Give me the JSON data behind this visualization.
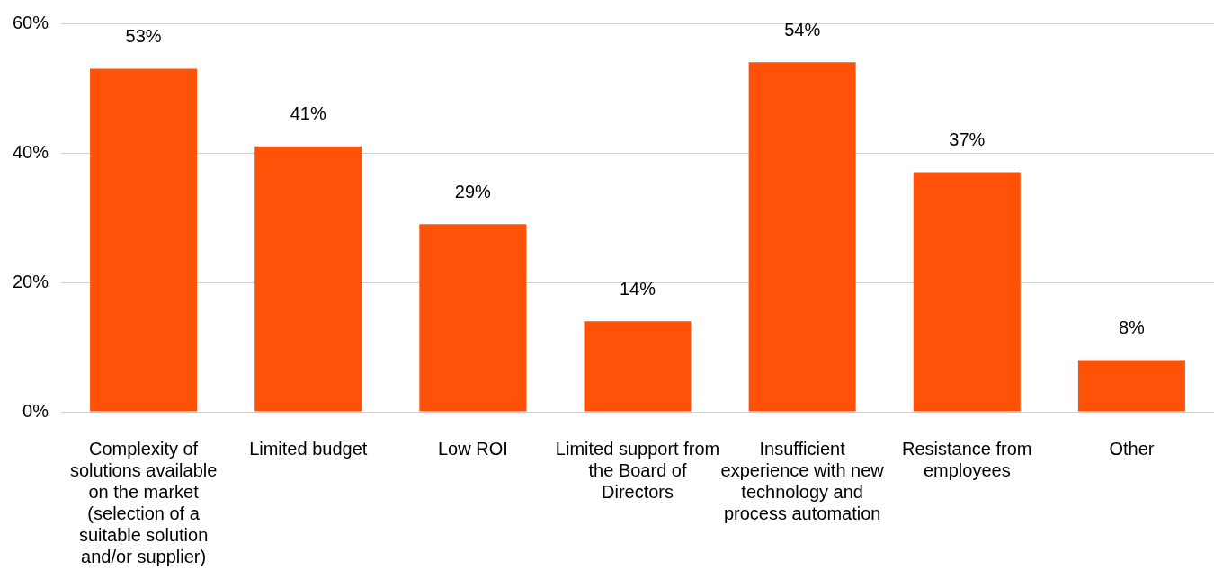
{
  "chart_data": {
    "type": "bar",
    "categories": [
      "Complexity of solutions available on the market (selection of a suitable solution and/or supplier)",
      "Limited budget",
      "Low ROI",
      "Limited support from the Board of Directors",
      "Insufficient experience with new technology and process automation",
      "Resistance from employees",
      "Other"
    ],
    "values": [
      53,
      41,
      29,
      14,
      54,
      37,
      8
    ],
    "value_labels": [
      "53%",
      "41%",
      "29%",
      "14%",
      "54%",
      "37%",
      "8%"
    ],
    "color": "#ff5208",
    "ylim": [
      0,
      60
    ],
    "yticks": [
      {
        "value": 0,
        "label": "0%"
      },
      {
        "value": 20,
        "label": "20%"
      },
      {
        "value": 40,
        "label": "40%"
      },
      {
        "value": 60,
        "label": "60%"
      }
    ],
    "grid": "y",
    "legend": false
  }
}
